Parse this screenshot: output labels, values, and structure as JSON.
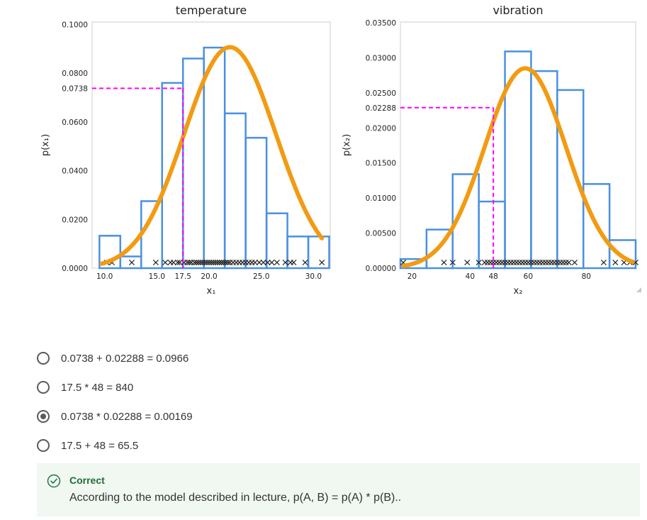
{
  "colors": {
    "histogram": "#4a90e2",
    "curve": "#f29b12",
    "guide": "#ff00ff",
    "markers": "#222222",
    "correct": "#1f7a40",
    "feedback_bg": "#f1f7f1"
  },
  "chart_data": [
    {
      "type": "bar",
      "title": "temperature",
      "xlabel": "x₁",
      "ylabel": "p(x₁)",
      "xlim": [
        8.8,
        31.6
      ],
      "ylim": [
        0,
        0.101
      ],
      "x_ticks": [
        "10.0",
        "15.0",
        "17.5",
        "20.0",
        "25.0",
        "30.0"
      ],
      "y_ticks": [
        "0.1000",
        "0.0800",
        "0.0738",
        "0.0600",
        "0.0400",
        "0.0200",
        "0.0000"
      ],
      "histogram": {
        "bin_edges": [
          9.5,
          11.5,
          13.5,
          15.5,
          17.5,
          19.5,
          21.5,
          23.5,
          25.5,
          27.5,
          29.5,
          31.5
        ],
        "densities": [
          0.0133,
          0.0048,
          0.0275,
          0.076,
          0.086,
          0.0905,
          0.0635,
          0.0535,
          0.0225,
          0.013,
          0.013
        ]
      },
      "gaussian": {
        "mean": 22.0,
        "std": 4.4,
        "x_range": [
          9.7,
          30.8
        ]
      },
      "guide": {
        "x": 17.5,
        "y": 0.0738
      },
      "samples": [
        10.2,
        10.7,
        12.6,
        14.9,
        15.8,
        16.3,
        16.6,
        17.0,
        17.2,
        17.6,
        17.9,
        18.1,
        18.3,
        18.6,
        18.8,
        19.0,
        19.2,
        19.4,
        19.6,
        19.8,
        20.0,
        20.2,
        20.4,
        20.6,
        20.8,
        21.0,
        21.2,
        21.4,
        21.6,
        21.8,
        22.0,
        22.3,
        22.6,
        22.9,
        23.2,
        23.5,
        23.8,
        24.1,
        24.4,
        24.8,
        25.2,
        25.6,
        26.0,
        26.5,
        27.3,
        27.8,
        28.1,
        29.2,
        30.8
      ]
    },
    {
      "type": "bar",
      "title": "vibration",
      "xlabel": "x₂",
      "ylabel": "p(x₂)",
      "xlim": [
        16,
        97
      ],
      "ylim": [
        0,
        0.0351
      ],
      "x_ticks": [
        "20",
        "40",
        "48",
        "60",
        "80"
      ],
      "y_ticks": [
        "0.03500",
        "0.03000",
        "0.02500",
        "0.02288",
        "0.02000",
        "0.01500",
        "0.01000",
        "0.00500",
        "0.00000"
      ],
      "histogram": {
        "bin_edges": [
          16,
          25,
          34,
          43,
          52,
          61,
          70,
          79,
          88,
          97
        ],
        "densities": [
          0.0013,
          0.0055,
          0.0134,
          0.0095,
          0.0309,
          0.0281,
          0.0254,
          0.012,
          0.004
        ]
      },
      "gaussian": {
        "mean": 59,
        "std": 14,
        "x_range": [
          17,
          96
        ]
      },
      "guide": {
        "x": 48,
        "y": 0.02288
      },
      "samples": [
        17,
        31,
        34,
        39,
        43,
        45,
        46,
        47,
        48,
        49,
        50,
        51,
        52,
        53,
        54,
        55,
        56,
        57,
        58,
        59,
        60,
        61,
        62,
        63,
        64,
        65,
        66,
        67,
        68,
        69,
        70,
        71,
        72,
        73,
        74,
        76,
        86,
        90,
        93,
        95,
        97
      ]
    }
  ],
  "question": {
    "options": [
      {
        "label": "0.0738 + 0.02288 = 0.0966",
        "selected": false
      },
      {
        "label": "17.5 * 48 = 840",
        "selected": false
      },
      {
        "label": "0.0738 * 0.02288 = 0.00169",
        "selected": true
      },
      {
        "label": "17.5 + 48 = 65.5",
        "selected": false
      }
    ]
  },
  "feedback": {
    "status_icon": "check-circle-icon",
    "title": "Correct",
    "text": "According to the model described in lecture, p(A, B) = p(A) * p(B).."
  }
}
